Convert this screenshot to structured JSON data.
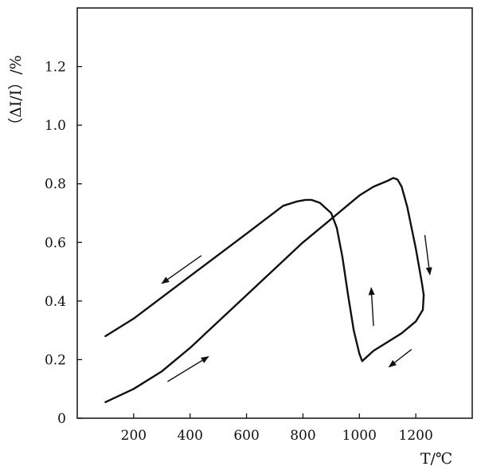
{
  "chart_data": {
    "type": "line",
    "xlabel": "T/℃",
    "ylabel": "（ΔI/I）/%",
    "xlim": [
      0,
      1400
    ],
    "ylim": [
      0,
      1.4
    ],
    "x_ticks": [
      "200",
      "400",
      "600",
      "800",
      "1000",
      "1200"
    ],
    "y_ticks": [
      "0",
      "0.2",
      "0.4",
      "0.6",
      "0.8",
      "1.0",
      "1.2"
    ],
    "series": [
      {
        "role": "heating",
        "x": [
          100,
          200,
          300,
          400,
          500,
          600,
          700,
          800,
          900,
          1000,
          1050,
          1100,
          1120,
          1135,
          1150,
          1170,
          1200,
          1222,
          1228
        ],
        "y": [
          0.055,
          0.1,
          0.16,
          0.24,
          0.33,
          0.42,
          0.51,
          0.6,
          0.68,
          0.76,
          0.79,
          0.81,
          0.82,
          0.815,
          0.79,
          0.72,
          0.58,
          0.46,
          0.42
        ]
      },
      {
        "role": "cooling",
        "x": [
          1228,
          1225,
          1200,
          1150,
          1100,
          1050,
          1010,
          1000,
          980,
          960,
          940,
          920,
          900,
          860,
          830,
          810,
          780,
          730,
          600,
          400,
          200,
          100
        ],
        "y": [
          0.42,
          0.37,
          0.33,
          0.29,
          0.26,
          0.23,
          0.195,
          0.22,
          0.3,
          0.42,
          0.55,
          0.65,
          0.7,
          0.735,
          0.745,
          0.745,
          0.74,
          0.725,
          0.63,
          0.485,
          0.34,
          0.28
        ]
      }
    ],
    "arrows": [
      {
        "from": [
          440,
          0.555
        ],
        "to": [
          300,
          0.46
        ]
      },
      {
        "from": [
          320,
          0.125
        ],
        "to": [
          465,
          0.21
        ]
      },
      {
        "from": [
          1232,
          0.625
        ],
        "to": [
          1250,
          0.49
        ]
      },
      {
        "from": [
          1050,
          0.315
        ],
        "to": [
          1042,
          0.445
        ]
      },
      {
        "from": [
          1185,
          0.235
        ],
        "to": [
          1105,
          0.175
        ]
      }
    ],
    "grid": false
  }
}
